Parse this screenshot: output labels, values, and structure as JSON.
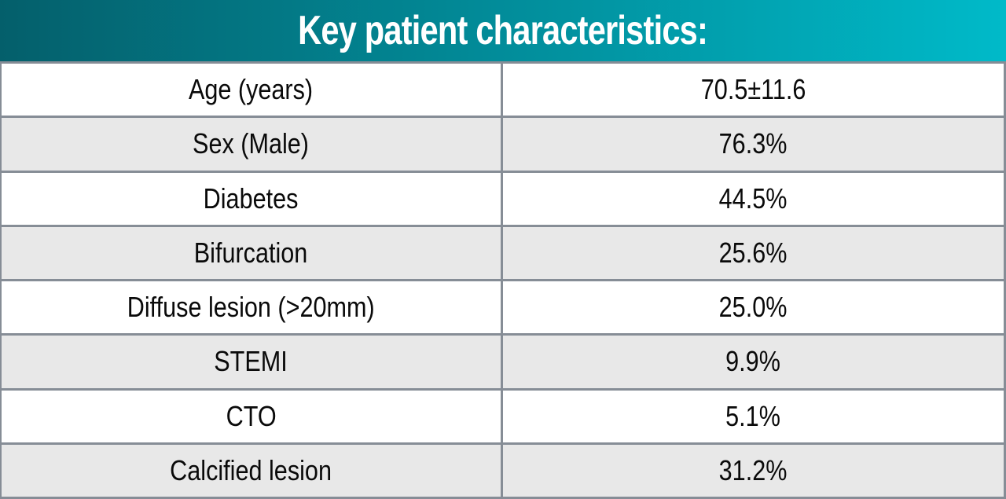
{
  "table": {
    "title": "Key patient characteristics:",
    "rows": [
      {
        "label": "Age (years)",
        "value": "70.5±11.6"
      },
      {
        "label": "Sex (Male)",
        "value": "76.3%"
      },
      {
        "label": "Diabetes",
        "value": "44.5%"
      },
      {
        "label": "Bifurcation",
        "value": "25.6%"
      },
      {
        "label": "Diffuse lesion (>20mm)",
        "value": "25.0%"
      },
      {
        "label": "STEMI",
        "value": "9.9%"
      },
      {
        "label": "CTO",
        "value": "5.1%"
      },
      {
        "label": "Calcified lesion",
        "value": "31.2%"
      }
    ]
  },
  "colors": {
    "header_grad_start": "#045f6b",
    "header_grad_end": "#00bac9",
    "border_color": "#868d96",
    "row_alt_bg": "#e8e8e8",
    "row_bg": "#ffffff",
    "title_color": "#ffffff",
    "text_color": "#0a0a0a"
  }
}
